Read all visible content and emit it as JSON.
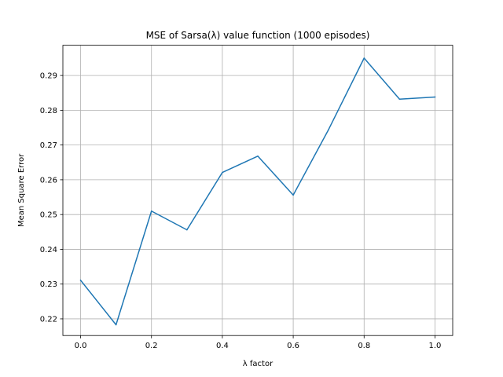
{
  "chart_data": {
    "type": "line",
    "title": "MSE of Sarsa(λ) value function (1000 episodes)",
    "xlabel": "λ factor",
    "ylabel": "Mean Square Error",
    "xlim": [
      -0.05,
      1.05
    ],
    "ylim": [
      0.2152,
      0.2987
    ],
    "grid": true,
    "x_ticks": [
      0.0,
      0.2,
      0.4,
      0.6,
      0.8,
      1.0
    ],
    "x_tick_labels": [
      "0.0",
      "0.2",
      "0.4",
      "0.6",
      "0.8",
      "1.0"
    ],
    "y_ticks": [
      0.22,
      0.23,
      0.24,
      0.25,
      0.26,
      0.27,
      0.28,
      0.29
    ],
    "y_tick_labels": [
      "0.22",
      "0.23",
      "0.24",
      "0.25",
      "0.26",
      "0.27",
      "0.28",
      "0.29"
    ],
    "series": [
      {
        "color": "#1f77b4",
        "x": [
          0.0,
          0.1,
          0.2,
          0.3,
          0.4,
          0.5,
          0.6,
          0.7,
          0.8,
          0.9,
          1.0
        ],
        "y": [
          0.2311,
          0.2183,
          0.251,
          0.2456,
          0.2621,
          0.2668,
          0.2556,
          0.2745,
          0.295,
          0.2832,
          0.2838
        ]
      }
    ]
  }
}
